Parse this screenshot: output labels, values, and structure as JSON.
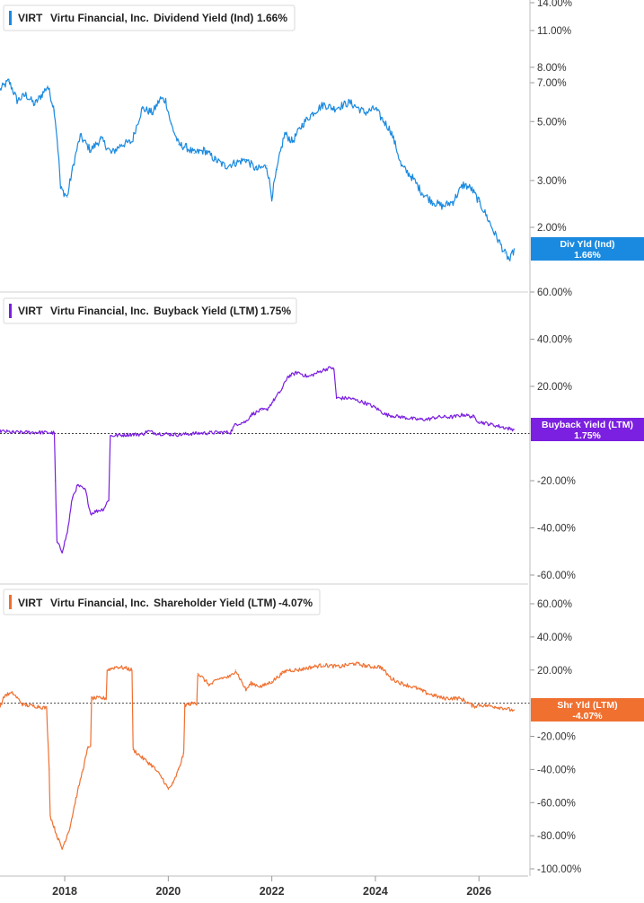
{
  "chart_data": [
    {
      "type": "line",
      "id": "div",
      "ticker": "VIRT",
      "company": "Virtu Financial, Inc.",
      "metric": "Dividend Yield (Ind)",
      "current": "1.66%",
      "badge": [
        "Div Yld (Ind)",
        "1.66%"
      ],
      "color": "#1a8ae0",
      "scale": "log",
      "ylim": [
        1.35,
        14.0
      ],
      "ticks": [
        {
          "v": 14,
          "label": "14.00%"
        },
        {
          "v": 11,
          "label": "11.00%"
        },
        {
          "v": 8,
          "label": "8.00%"
        },
        {
          "v": 7,
          "label": "7.00%"
        },
        {
          "v": 5,
          "label": "5.00%"
        },
        {
          "v": 3,
          "label": "3.00%"
        },
        {
          "v": 2,
          "label": "2.00%"
        }
      ],
      "zero_line": false,
      "x": [
        2016.75,
        2016.92,
        2017.08,
        2017.25,
        2017.42,
        2017.58,
        2017.67,
        2017.8,
        2017.92,
        2018.05,
        2018.15,
        2018.3,
        2018.5,
        2018.7,
        2018.9,
        2019.1,
        2019.3,
        2019.5,
        2019.7,
        2019.85,
        2019.95,
        2020.05,
        2020.2,
        2020.35,
        2020.5,
        2020.7,
        2020.9,
        2021.1,
        2021.3,
        2021.5,
        2021.7,
        2021.9,
        2022.0,
        2022.1,
        2022.25,
        2022.4,
        2022.6,
        2022.8,
        2023.0,
        2023.2,
        2023.5,
        2023.8,
        2024.0,
        2024.1,
        2024.3,
        2024.5,
        2024.7,
        2024.9,
        2025.1,
        2025.3,
        2025.5,
        2025.7,
        2025.85,
        2026.0,
        2026.15,
        2026.3,
        2026.5,
        2026.6,
        2026.68
      ],
      "values": [
        6.6,
        7.1,
        6.0,
        6.3,
        5.8,
        6.4,
        6.8,
        5.5,
        2.8,
        2.6,
        3.3,
        4.4,
        3.9,
        4.3,
        3.8,
        4.1,
        4.2,
        5.6,
        5.4,
        6.1,
        6.0,
        4.9,
        4.1,
        4.0,
        3.8,
        3.9,
        3.6,
        3.4,
        3.5,
        3.6,
        3.3,
        3.4,
        2.6,
        3.3,
        4.5,
        4.2,
        4.9,
        5.4,
        5.8,
        5.6,
        5.9,
        5.4,
        5.6,
        5.2,
        4.6,
        3.4,
        3.1,
        2.7,
        2.5,
        2.4,
        2.5,
        2.9,
        2.8,
        2.5,
        2.2,
        1.9,
        1.6,
        1.5,
        1.66
      ]
    },
    {
      "type": "line",
      "id": "buy",
      "ticker": "VIRT",
      "company": "Virtu Financial, Inc.",
      "metric": "Buyback Yield (LTM)",
      "current": "1.75%",
      "badge": [
        "Buyback Yield (LTM)",
        "1.75%"
      ],
      "color": "#7b1fe0",
      "scale": "linear",
      "ylim": [
        -62,
        62
      ],
      "ticks": [
        {
          "v": 60,
          "label": "60.00%"
        },
        {
          "v": 40,
          "label": "40.00%"
        },
        {
          "v": 20,
          "label": "20.00%"
        },
        {
          "v": -20,
          "label": "-20.00%"
        },
        {
          "v": -40,
          "label": "-40.00%"
        },
        {
          "v": -60,
          "label": "-60.00%"
        }
      ],
      "zero_line": true,
      "x": [
        2016.75,
        2017.0,
        2017.5,
        2017.8,
        2017.82,
        2017.85,
        2017.95,
        2018.05,
        2018.15,
        2018.25,
        2018.4,
        2018.5,
        2018.6,
        2018.75,
        2018.85,
        2018.88,
        2019.2,
        2019.5,
        2019.6,
        2019.8,
        2020.2,
        2020.5,
        2021.0,
        2021.2,
        2021.3,
        2021.5,
        2021.6,
        2021.8,
        2021.9,
        2022.2,
        2022.3,
        2022.5,
        2022.7,
        2022.9,
        2023.0,
        2023.15,
        2023.2,
        2023.25,
        2023.5,
        2023.8,
        2024.0,
        2024.2,
        2024.5,
        2024.8,
        2025.0,
        2025.2,
        2025.5,
        2025.7,
        2025.9,
        2026.0,
        2026.2,
        2026.4,
        2026.6,
        2026.68
      ],
      "values": [
        1.0,
        0.5,
        0.5,
        0.3,
        -20.0,
        -46.0,
        -50.0,
        -42.0,
        -27.0,
        -22.0,
        -24.0,
        -34.0,
        -33.0,
        -32.0,
        -28.0,
        -1.0,
        -0.5,
        -0.3,
        1.0,
        0.0,
        -0.5,
        0.0,
        0.5,
        0.5,
        4.0,
        5.0,
        8.0,
        10.0,
        10.0,
        19.0,
        24.0,
        26.0,
        24.0,
        26.0,
        27.0,
        28.0,
        27.0,
        15.0,
        15.0,
        13.0,
        11.0,
        8.0,
        7.0,
        6.0,
        6.0,
        7.0,
        7.0,
        8.0,
        7.0,
        5.0,
        4.0,
        3.0,
        2.0,
        1.75
      ]
    },
    {
      "type": "line",
      "id": "shr",
      "ticker": "VIRT",
      "company": "Virtu Financial, Inc.",
      "metric": "Shareholder Yield (LTM)",
      "current": "-4.07%",
      "badge": [
        "Shr Yld (LTM)",
        "-4.07%"
      ],
      "color": "#f07030",
      "scale": "linear",
      "ylim": [
        -102,
        64
      ],
      "ticks": [
        {
          "v": 60,
          "label": "60.00%"
        },
        {
          "v": 40,
          "label": "40.00%"
        },
        {
          "v": 20,
          "label": "20.00%"
        },
        {
          "v": -20,
          "label": "-20.00%"
        },
        {
          "v": -40,
          "label": "-40.00%"
        },
        {
          "v": -60,
          "label": "-60.00%"
        },
        {
          "v": -80,
          "label": "-80.00%"
        },
        {
          "v": -100,
          "label": "-100.00%"
        }
      ],
      "zero_line": true,
      "x": [
        2016.75,
        2016.85,
        2017.0,
        2017.2,
        2017.5,
        2017.65,
        2017.7,
        2017.72,
        2017.85,
        2017.95,
        2018.1,
        2018.2,
        2018.35,
        2018.45,
        2018.5,
        2018.52,
        2018.7,
        2018.8,
        2018.82,
        2019.0,
        2019.2,
        2019.3,
        2019.32,
        2019.5,
        2019.7,
        2019.9,
        2020.0,
        2020.1,
        2020.2,
        2020.3,
        2020.32,
        2020.5,
        2020.55,
        2020.57,
        2020.8,
        2021.0,
        2021.2,
        2021.3,
        2021.5,
        2021.6,
        2021.8,
        2022.0,
        2022.2,
        2022.3,
        2022.5,
        2022.8,
        2023.0,
        2023.3,
        2023.6,
        2023.9,
        2024.1,
        2024.3,
        2024.5,
        2024.8,
        2025.0,
        2025.3,
        2025.6,
        2025.7,
        2025.9,
        2026.0,
        2026.3,
        2026.5,
        2026.6,
        2026.68
      ],
      "values": [
        -2.0,
        5.0,
        6.0,
        -1.0,
        -2.0,
        -3.0,
        -40.0,
        -68.0,
        -80.0,
        -88.0,
        -75.0,
        -60.0,
        -40.0,
        -27.0,
        -25.0,
        3.0,
        3.0,
        3.0,
        20.0,
        22.0,
        21.0,
        20.0,
        -28.0,
        -33.0,
        -38.0,
        -46.0,
        -52.0,
        -48.0,
        -40.0,
        -30.0,
        -1.0,
        0.0,
        0.0,
        18.0,
        11.0,
        15.0,
        16.0,
        20.0,
        8.0,
        12.0,
        10.0,
        13.0,
        18.0,
        20.0,
        20.0,
        22.0,
        23.0,
        22.0,
        24.0,
        22.0,
        22.0,
        15.0,
        12.0,
        9.0,
        6.0,
        3.0,
        3.0,
        2.0,
        -2.0,
        -1.0,
        -2.0,
        -3.0,
        -4.0,
        -4.07
      ]
    }
  ],
  "x_axis": {
    "xlim": [
      2016.75,
      2026.95
    ],
    "ticks": [
      {
        "v": 2018,
        "label": "2018"
      },
      {
        "v": 2020,
        "label": "2020"
      },
      {
        "v": 2022,
        "label": "2022"
      },
      {
        "v": 2024,
        "label": "2024"
      },
      {
        "v": 2026,
        "label": "2026"
      }
    ]
  }
}
